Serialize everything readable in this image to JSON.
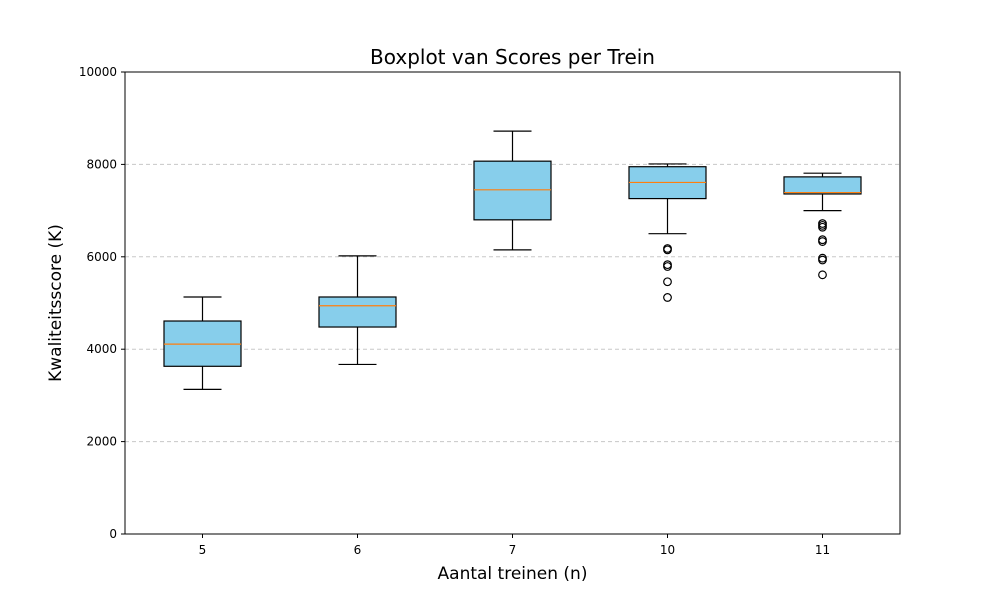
{
  "chart_data": {
    "type": "boxplot",
    "title": "Boxplot van Scores per Trein",
    "xlabel": "Aantal treinen (n)",
    "ylabel": "Kwaliteitsscore (K)",
    "ylim": [
      0,
      10000
    ],
    "yticks": [
      0,
      2000,
      4000,
      6000,
      8000,
      10000
    ],
    "ytick_labels": [
      "0",
      "2000",
      "4000",
      "6000",
      "8000",
      "10000"
    ],
    "grid": "y-dashed",
    "colors": {
      "box_fill": "#87ceeb",
      "median": "#ff7f0e",
      "grid": "#c8c8c8"
    },
    "categories": [
      "5",
      "6",
      "7",
      "10",
      "11"
    ],
    "boxes": [
      {
        "category": "5",
        "whisker_low": 3130,
        "q1": 3630,
        "median": 4110,
        "q3": 4610,
        "whisker_high": 5130,
        "outliers": []
      },
      {
        "category": "6",
        "whisker_low": 3670,
        "q1": 4480,
        "median": 4940,
        "q3": 5130,
        "whisker_high": 6020,
        "outliers": []
      },
      {
        "category": "7",
        "whisker_low": 6150,
        "q1": 6800,
        "median": 7450,
        "q3": 8070,
        "whisker_high": 8720,
        "outliers": []
      },
      {
        "category": "10",
        "whisker_low": 6500,
        "q1": 7260,
        "median": 7610,
        "q3": 7950,
        "whisker_high": 8010,
        "outliers": [
          6180,
          6150,
          5830,
          5790,
          5460,
          5120
        ]
      },
      {
        "category": "11",
        "whisker_low": 7000,
        "q1": 7360,
        "median": 7390,
        "q3": 7730,
        "whisker_high": 7810,
        "outliers": [
          6720,
          6680,
          6640,
          6370,
          6330,
          5970,
          5930,
          5610
        ]
      }
    ]
  }
}
